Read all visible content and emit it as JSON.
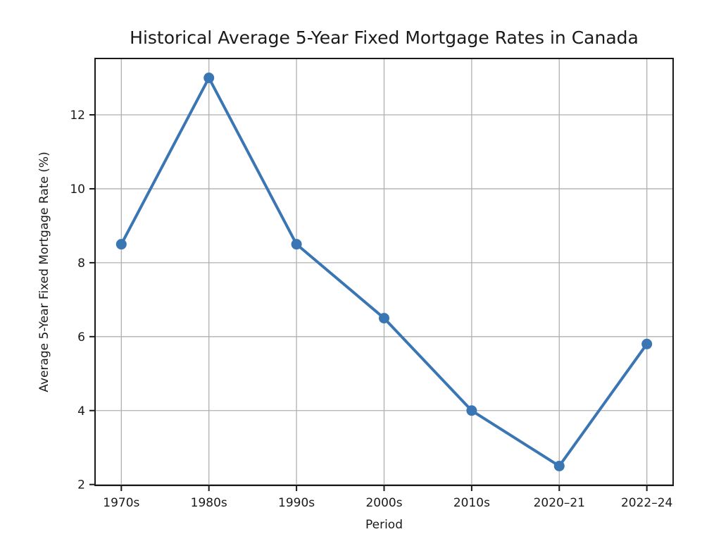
{
  "chart_data": {
    "type": "line",
    "title": "Historical Average 5-Year Fixed Mortgage Rates in Canada",
    "xlabel": "Period",
    "ylabel": "Average 5-Year Fixed Mortgage Rate (%)",
    "categories": [
      "1970s",
      "1980s",
      "1990s",
      "2000s",
      "2010s",
      "2020–21",
      "2022–24"
    ],
    "values": [
      8.5,
      13.0,
      8.5,
      6.5,
      4.0,
      2.5,
      5.8
    ],
    "yticks": [
      2,
      4,
      6,
      8,
      10,
      12
    ],
    "ylim": [
      1.975,
      13.525
    ],
    "grid": true,
    "legend_position": "none",
    "colors": {
      "line": "#3a76b4",
      "marker": "#3a76b4",
      "grid": "#b0b0b0",
      "spine": "#1a1a1a",
      "text": "#1a1a1a",
      "background": "#ffffff"
    }
  }
}
